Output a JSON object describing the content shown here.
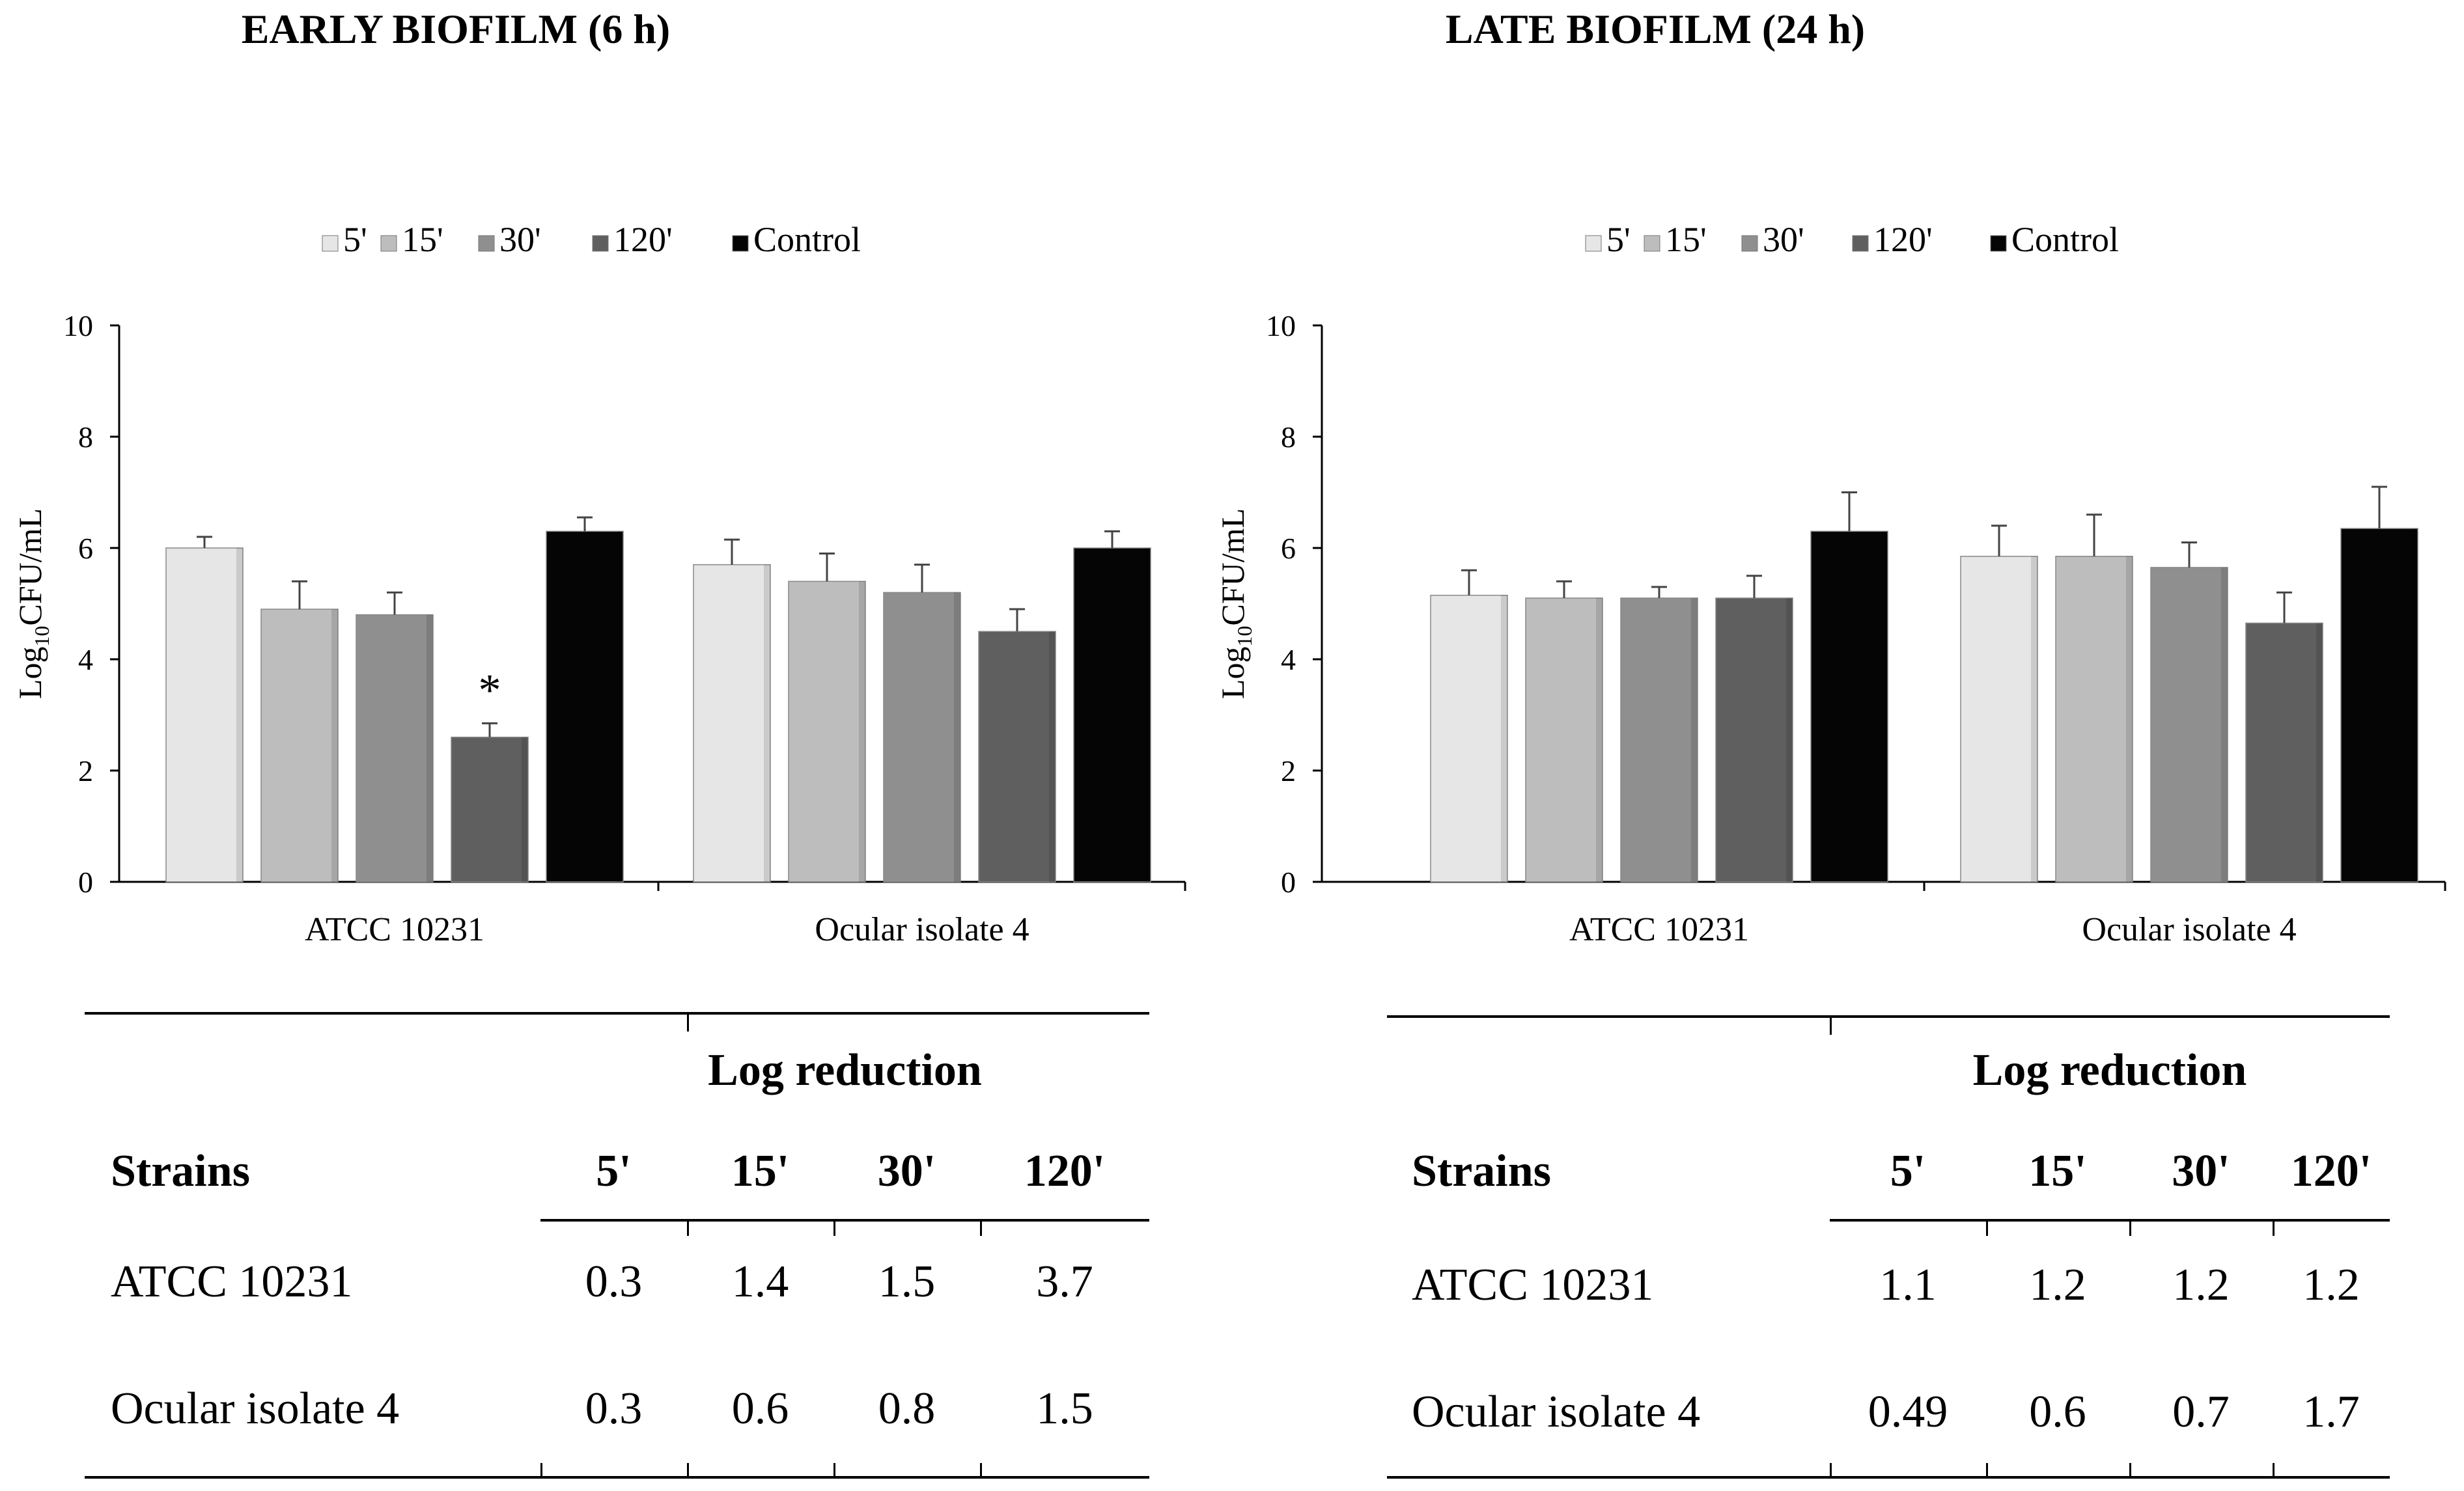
{
  "chart_data": [
    {
      "type": "bar",
      "title": "EARLY BIOFILM (6 h)",
      "ylabel": "Log10CFU/mL",
      "ylabel_main": "Log",
      "ylabel_sub": "10",
      "ylabel_rest": "CFU/mL",
      "ylim": [
        0,
        10
      ],
      "yticks": [
        "0",
        "2",
        "4",
        "6",
        "8",
        "10"
      ],
      "categories": [
        "ATCC 10231",
        "Ocular isolate 4"
      ],
      "series": [
        {
          "name": "5'",
          "values": [
            6.0,
            5.7
          ],
          "errors": [
            0.2,
            0.45
          ],
          "color": "#e6e6e6"
        },
        {
          "name": "15'",
          "values": [
            4.9,
            5.4
          ],
          "errors": [
            0.5,
            0.5
          ],
          "color": "#bdbdbd"
        },
        {
          "name": "30'",
          "values": [
            4.8,
            5.2
          ],
          "errors": [
            0.4,
            0.5
          ],
          "color": "#8f8f8f"
        },
        {
          "name": "120'",
          "values": [
            2.6,
            4.5
          ],
          "errors": [
            0.25,
            0.4
          ],
          "color": "#5f5f5f"
        },
        {
          "name": "Control",
          "values": [
            6.3,
            6.0
          ],
          "errors": [
            0.25,
            0.3
          ],
          "color": "#050505"
        }
      ],
      "annotations": [
        {
          "text": "*",
          "category": "ATCC 10231",
          "series": "120'"
        }
      ],
      "legend": "top"
    },
    {
      "type": "bar",
      "title": "LATE BIOFILM (24 h)",
      "ylabel": "Log10CFU/mL",
      "ylabel_main": "Log",
      "ylabel_sub": "10",
      "ylabel_rest": "CFU/mL",
      "ylim": [
        0,
        10
      ],
      "yticks": [
        "0",
        "2",
        "4",
        "6",
        "8",
        "10"
      ],
      "categories": [
        "ATCC 10231",
        "Ocular isolate 4"
      ],
      "series": [
        {
          "name": "5'",
          "values": [
            5.15,
            5.85
          ],
          "errors": [
            0.45,
            0.55
          ],
          "color": "#e6e6e6"
        },
        {
          "name": "15'",
          "values": [
            5.1,
            5.85
          ],
          "errors": [
            0.3,
            0.75
          ],
          "color": "#bdbdbd"
        },
        {
          "name": "30'",
          "values": [
            5.1,
            5.65
          ],
          "errors": [
            0.2,
            0.45
          ],
          "color": "#8f8f8f"
        },
        {
          "name": "120'",
          "values": [
            5.1,
            4.65
          ],
          "errors": [
            0.4,
            0.55
          ],
          "color": "#5f5f5f"
        },
        {
          "name": "Control",
          "values": [
            6.3,
            6.35
          ],
          "errors": [
            0.7,
            0.75
          ],
          "color": "#050505"
        }
      ],
      "annotations": [],
      "legend": "top"
    }
  ],
  "tables": [
    {
      "group_header": "Log reduction",
      "strain_header": "Strains",
      "time_headers": [
        "5'",
        "15'",
        "30'",
        "120'"
      ],
      "rows": [
        {
          "strain": "ATCC 10231",
          "values": [
            "0.3",
            "1.4",
            "1.5",
            "3.7"
          ]
        },
        {
          "strain": "Ocular isolate 4",
          "values": [
            "0.3",
            "0.6",
            "0.8",
            "1.5"
          ]
        }
      ]
    },
    {
      "group_header": "Log reduction",
      "strain_header": "Strains",
      "time_headers": [
        "5'",
        "15'",
        "30'",
        "120'"
      ],
      "rows": [
        {
          "strain": "ATCC 10231",
          "values": [
            "1.1",
            "1.2",
            "1.2",
            "1.2"
          ]
        },
        {
          "strain": "Ocular isolate 4",
          "values": [
            "0.49",
            "0.6",
            "0.7",
            "1.7"
          ]
        }
      ]
    }
  ]
}
